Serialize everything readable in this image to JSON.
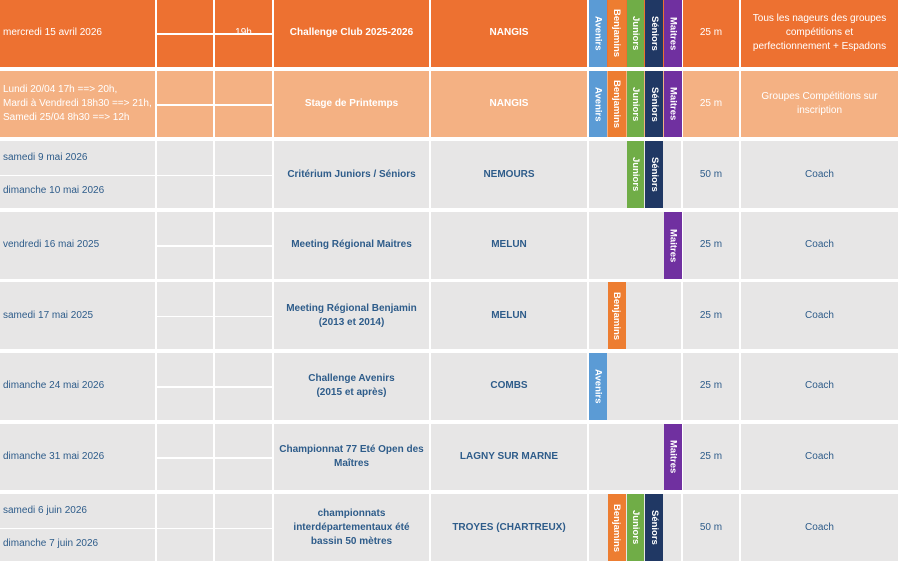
{
  "rows": [
    {
      "fill": "#ED7131",
      "text_color": "#ffffff",
      "dates": [
        "mercredi 15 avril 2026"
      ],
      "time": "19h",
      "event": [
        "Challenge Club 2025-2026"
      ],
      "location": "NANGIS",
      "groups": [
        {
          "label": "Avenirs",
          "color": "#5B9BD5"
        },
        {
          "label": "Benjamins",
          "color": "#ED7D31"
        },
        {
          "label": "Juniors",
          "color": "#70AD47"
        },
        {
          "label": "Séniors",
          "color": "#203864"
        },
        {
          "label": "Maitres",
          "color": "#7030A0"
        }
      ],
      "pool": "25 m",
      "note": "Tous les nageurs des groupes compétitions et perfectionnement + Espadons"
    },
    {
      "fill": "#F4B183",
      "text_color": "#ffffff",
      "dates": [
        "Lundi 20/04 17h ==> 20h,",
        "Mardi à Vendredi 18h30 ==> 21h,",
        "Samedi 25/04 8h30 ==> 12h"
      ],
      "event": [
        "Stage de Printemps"
      ],
      "location": "NANGIS",
      "groups": [
        {
          "label": "Avenirs",
          "color": "#5B9BD5"
        },
        {
          "label": "Benjamins",
          "color": "#ED7D31"
        },
        {
          "label": "Juniors",
          "color": "#70AD47"
        },
        {
          "label": "Séniors",
          "color": "#203864"
        },
        {
          "label": "Maitres",
          "color": "#7030A0"
        }
      ],
      "pool": "25 m",
      "note": "Groupes Compétitions sur inscription"
    },
    {
      "fill": "#E7E6E6",
      "text_color": "#2E5C8A",
      "dates": [
        "samedi 9 mai 2026",
        "dimanche 10 mai 2026"
      ],
      "event": [
        "Critérium Juniors / Séniors"
      ],
      "location": "NEMOURS",
      "groups": [
        {
          "label": "Juniors",
          "color": "#70AD47"
        },
        {
          "label": "Séniors",
          "color": "#203864"
        }
      ],
      "pool": "50 m",
      "note": "Coach"
    },
    {
      "fill": "#E7E6E6",
      "text_color": "#2E5C8A",
      "dates": [
        "vendredi 16 mai 2025"
      ],
      "event": [
        "Meeting Régional Maitres"
      ],
      "location": "MELUN",
      "groups": [
        {
          "label": "Maitres",
          "color": "#7030A0"
        }
      ],
      "pool": "25 m",
      "note": "Coach"
    },
    {
      "fill": "#E7E6E6",
      "text_color": "#2E5C8A",
      "dates": [
        "samedi 17 mai 2025"
      ],
      "event": [
        "Meeting Régional Benjamin",
        "(2013 et 2014)"
      ],
      "location": "MELUN",
      "groups": [
        {
          "label": "Benjamins",
          "color": "#ED7D31"
        }
      ],
      "pool": "25 m",
      "note": "Coach"
    },
    {
      "fill": "#E7E6E6",
      "text_color": "#2E5C8A",
      "dates": [
        "dimanche 24 mai 2026"
      ],
      "event": [
        "Challenge Avenirs",
        "(2015 et après)"
      ],
      "location": "COMBS",
      "groups": [
        {
          "label": "Avenirs",
          "color": "#5B9BD5"
        }
      ],
      "pool": "25 m",
      "note": "Coach"
    },
    {
      "fill": "#E7E6E6",
      "text_color": "#2E5C8A",
      "dates": [
        "dimanche 31 mai 2026"
      ],
      "event": [
        "Championnat 77 Eté Open des",
        "Maîtres"
      ],
      "location": "LAGNY SUR MARNE",
      "groups": [
        {
          "label": "Maitres",
          "color": "#7030A0"
        }
      ],
      "pool": "25 m",
      "note": "Coach"
    },
    {
      "fill": "#E7E6E6",
      "text_color": "#2E5C8A",
      "dates": [
        "samedi 6 juin 2026",
        "dimanche 7 juin 2026"
      ],
      "event": [
        "championnats",
        "interdépartementaux été",
        "bassin 50 mètres"
      ],
      "location": "TROYES (CHARTREUX)",
      "groups": [
        {
          "label": "Benjamins",
          "color": "#ED7D31"
        },
        {
          "label": "Juniors",
          "color": "#70AD47"
        },
        {
          "label": "Séniors",
          "color": "#203864"
        }
      ],
      "pool": "50 m",
      "note": "Coach"
    }
  ]
}
